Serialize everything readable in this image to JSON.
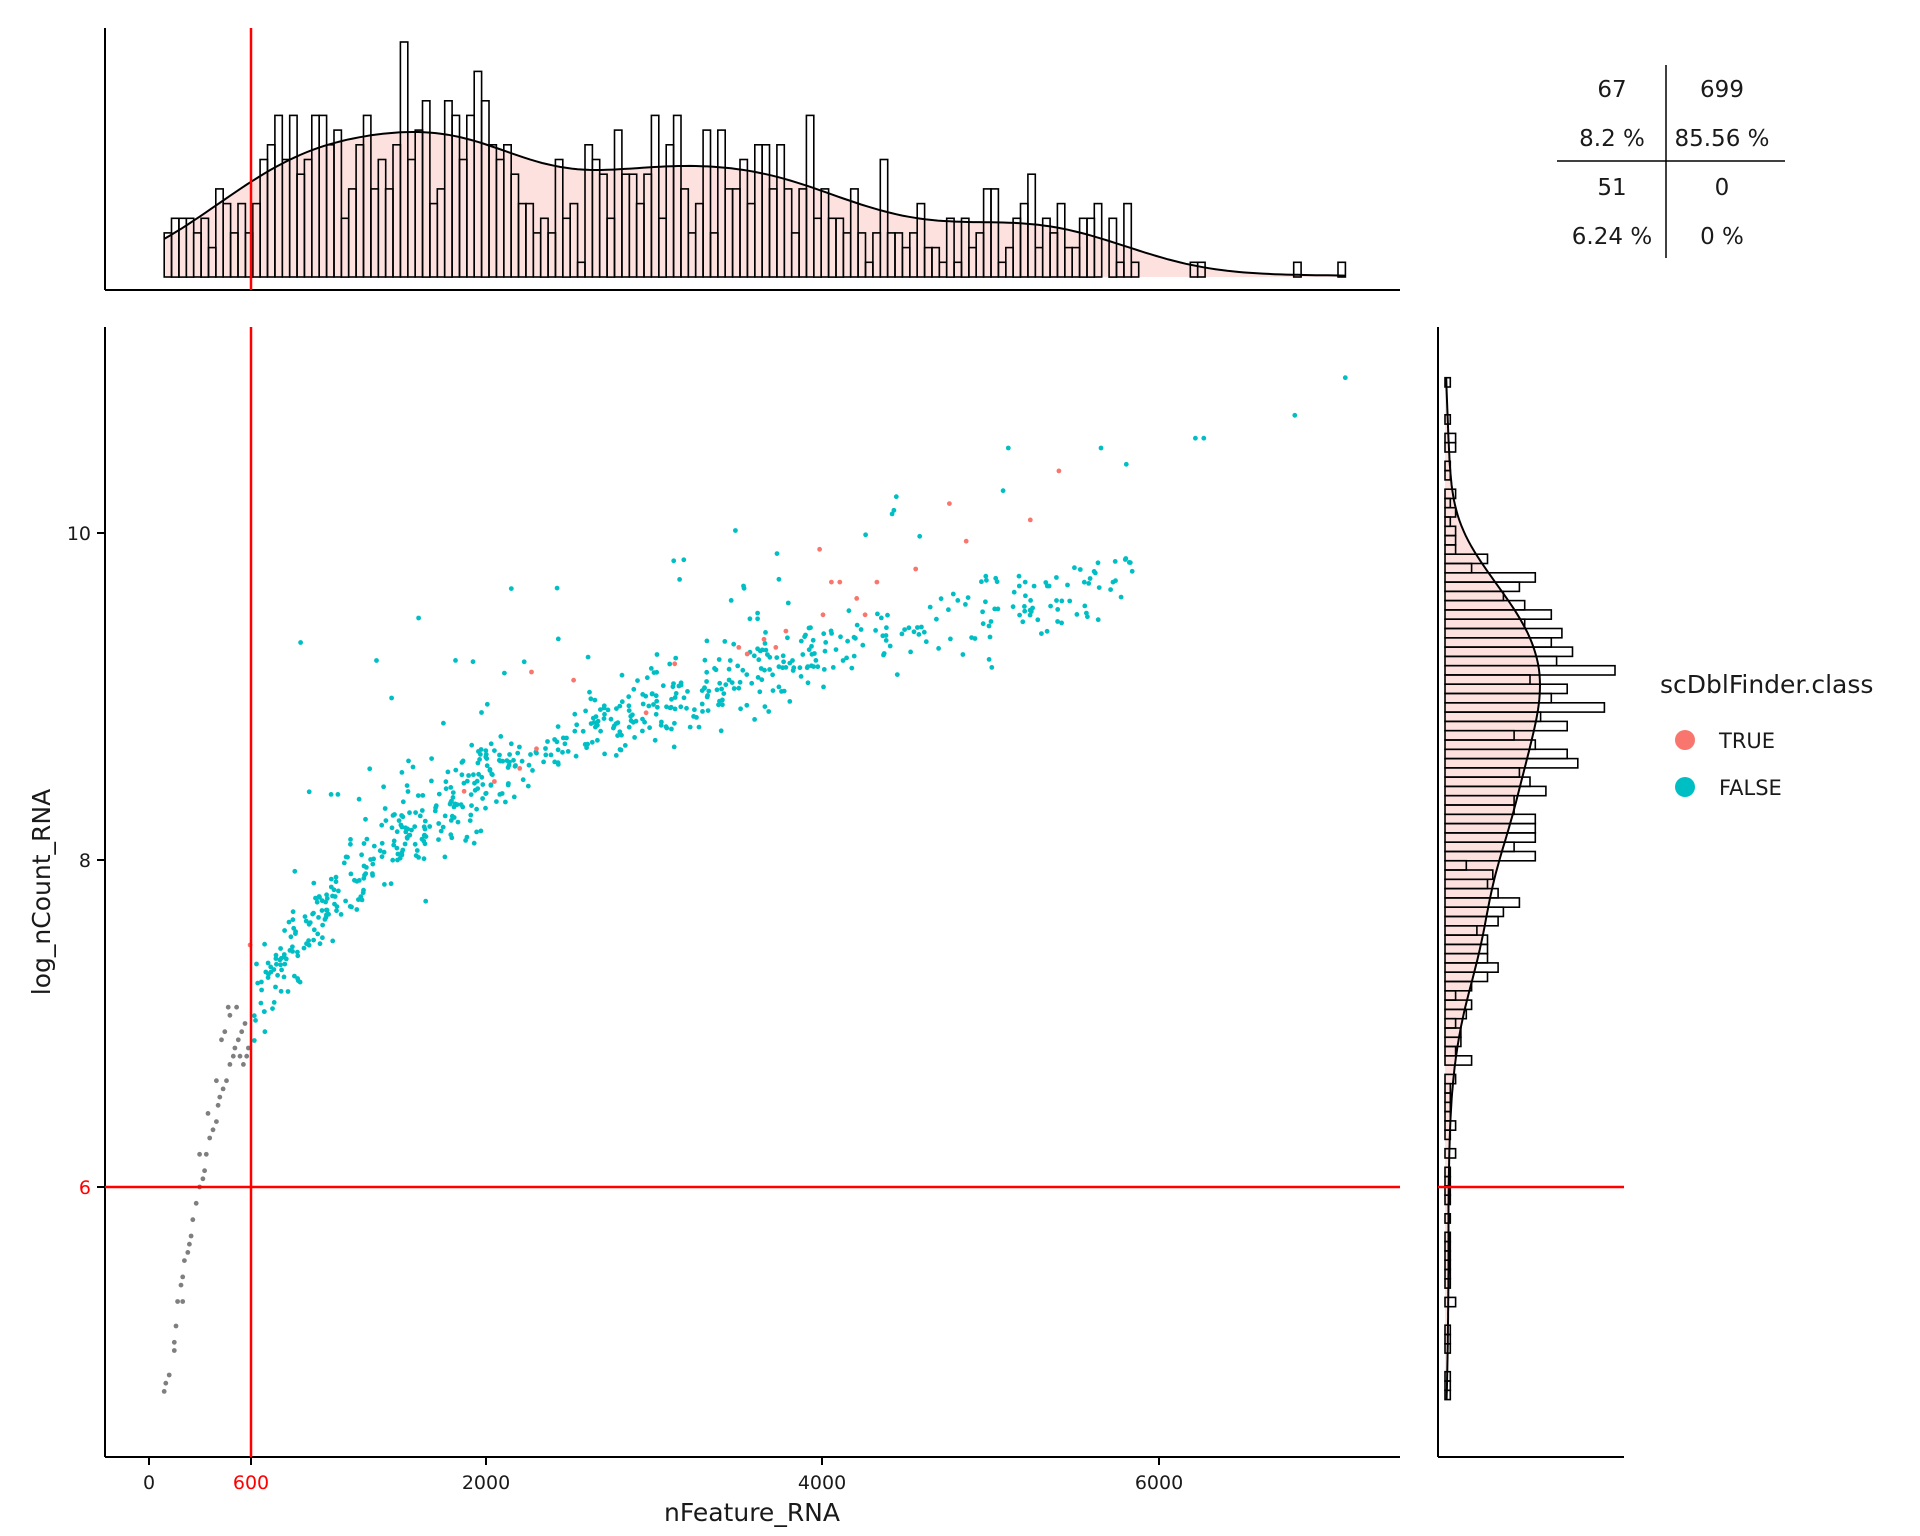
{
  "colors": {
    "true_class": "#F8766D",
    "false_class": "#00BFC4",
    "filtered": "#7F7F7F",
    "threshold": "#FF0000",
    "density_fill": "#F8766D",
    "axis": "#000000"
  },
  "threshold_labels": {
    "x": "600",
    "y": "6"
  },
  "quadrant_table": {
    "top_left": {
      "count": "67",
      "pct": "8.2 %"
    },
    "top_right": {
      "count": "699",
      "pct": "85.56 %"
    },
    "bottom_left": {
      "count": "51",
      "pct": "6.24 %"
    },
    "bottom_right": {
      "count": "0",
      "pct": "0 %"
    }
  },
  "legend": {
    "title": "scDblFinder.class",
    "items": [
      {
        "label": "TRUE",
        "color": "#F8766D"
      },
      {
        "label": "FALSE",
        "color": "#00BFC4"
      }
    ]
  },
  "chart_data": [
    {
      "type": "scatter",
      "title": "",
      "xlabel": "nFeature_RNA",
      "ylabel": "log_nCount_RNA",
      "xlim": [
        -250,
        7500
      ],
      "ylim": [
        4.4,
        11.3
      ],
      "xticks": [
        "0",
        "600",
        "2000",
        "4000",
        "6000"
      ],
      "yticks": [
        "6",
        "8",
        "10"
      ],
      "thresholds": {
        "x": 600,
        "y": 6
      },
      "grid": false,
      "legend_position": "right",
      "series": [
        {
          "name": "TRUE",
          "color": "#F8766D",
          "points": [
            [
              600,
              7.48
            ],
            [
              1870,
              8.42
            ],
            [
              2050,
              8.48
            ],
            [
              2200,
              8.56
            ],
            [
              2270,
              9.15
            ],
            [
              2300,
              8.68
            ],
            [
              2520,
              9.1
            ],
            [
              2950,
              8.9
            ],
            [
              3120,
              9.2
            ],
            [
              3500,
              9.3
            ],
            [
              3550,
              9.26
            ],
            [
              3650,
              9.35
            ],
            [
              3720,
              9.3
            ],
            [
              3780,
              9.4
            ],
            [
              3980,
              9.9
            ],
            [
              4050,
              9.7
            ],
            [
              4000,
              9.5
            ],
            [
              4100,
              9.7
            ],
            [
              4200,
              9.6
            ],
            [
              4250,
              9.5
            ],
            [
              4320,
              9.7
            ],
            [
              4550,
              9.78
            ],
            [
              4750,
              10.18
            ],
            [
              4850,
              9.95
            ],
            [
              5230,
              10.08
            ],
            [
              5400,
              10.38
            ]
          ]
        },
        {
          "name": "FALSE",
          "color": "#00BFC4",
          "points": []
        },
        {
          "name": "filtered",
          "color": "#7F7F7F",
          "points": [
            [
              90,
              4.75
            ],
            [
              100,
              4.8
            ],
            [
              120,
              4.85
            ],
            [
              150,
              5.05
            ],
            [
              160,
              5.15
            ],
            [
              170,
              5.3
            ],
            [
              190,
              5.4
            ],
            [
              200,
              5.45
            ],
            [
              210,
              5.55
            ],
            [
              230,
              5.6
            ],
            [
              240,
              5.65
            ],
            [
              260,
              5.8
            ],
            [
              280,
              5.9
            ],
            [
              300,
              6.0
            ],
            [
              320,
              6.05
            ],
            [
              330,
              6.1
            ],
            [
              340,
              6.2
            ],
            [
              360,
              6.3
            ],
            [
              380,
              6.35
            ],
            [
              400,
              6.4
            ],
            [
              410,
              6.5
            ],
            [
              420,
              6.55
            ],
            [
              440,
              6.6
            ],
            [
              460,
              6.65
            ],
            [
              480,
              6.75
            ],
            [
              500,
              6.8
            ],
            [
              510,
              6.85
            ],
            [
              530,
              6.9
            ],
            [
              550,
              6.95
            ],
            [
              570,
              7.0
            ],
            [
              480,
              7.05
            ],
            [
              450,
              6.95
            ],
            [
              520,
              7.1
            ],
            [
              560,
              6.75
            ],
            [
              590,
              6.85
            ],
            [
              400,
              6.65
            ],
            [
              350,
              6.45
            ],
            [
              300,
              6.2
            ],
            [
              250,
              5.7
            ],
            [
              200,
              5.3
            ],
            [
              150,
              5.0
            ],
            [
              430,
              6.9
            ],
            [
              470,
              7.1
            ],
            [
              540,
              6.8
            ],
            [
              580,
              6.8
            ]
          ]
        }
      ]
    },
    {
      "type": "bar",
      "title": "",
      "orientation": "vertical",
      "axis": "nFeature_RNA",
      "density": true
    },
    {
      "type": "bar",
      "title": "",
      "orientation": "horizontal",
      "axis": "log_nCount_RNA",
      "density": true
    }
  ]
}
